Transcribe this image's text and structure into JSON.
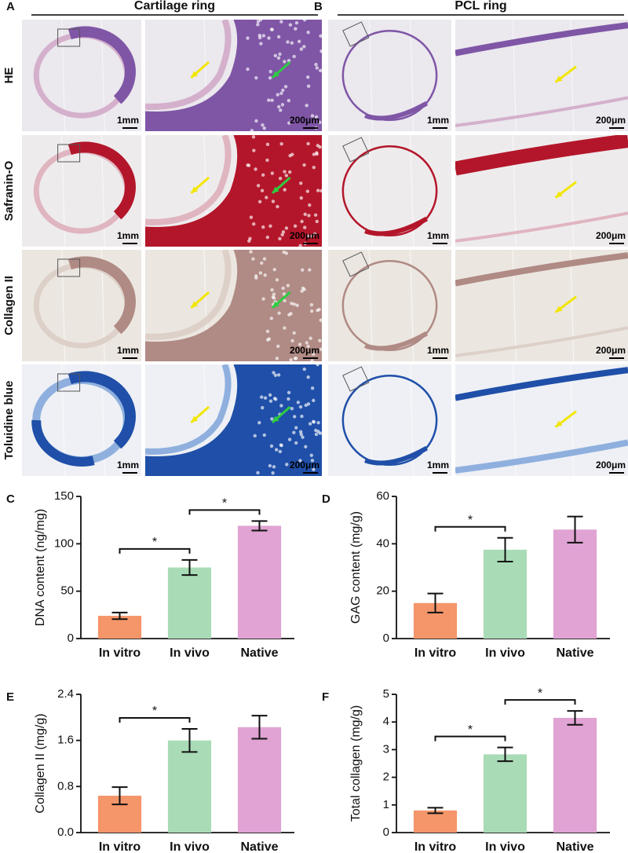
{
  "histology": {
    "panels": [
      {
        "label": "A",
        "title": "Cartilage ring",
        "scale_bars": [
          "1mm",
          "200μm"
        ]
      },
      {
        "label": "B",
        "title": "PCL ring",
        "scale_bars": [
          "1mm",
          "200μm"
        ]
      }
    ],
    "stains": [
      "HE",
      "Safranin-O",
      "Collagen II",
      "Toluidine blue"
    ]
  },
  "chart_data": [
    {
      "type": "bar",
      "panel": "C",
      "ylabel": "DNA content (ng/mg)",
      "categories": [
        "In vitro",
        "In vivo",
        "Native"
      ],
      "values": [
        24,
        75,
        119
      ],
      "errors": [
        3.5,
        8,
        5
      ],
      "colors": [
        "#f4956a",
        "#a9dcb6",
        "#e0a3d3"
      ],
      "ylim": [
        0,
        150
      ],
      "yticks": [
        0,
        50,
        100,
        150
      ],
      "significance": [
        {
          "between": [
            "In vitro",
            "In vivo"
          ],
          "label": "*"
        },
        {
          "between": [
            "In vivo",
            "Native"
          ],
          "label": "*"
        }
      ]
    },
    {
      "type": "bar",
      "panel": "D",
      "ylabel": "GAG content (mg/g)",
      "categories": [
        "In vitro",
        "In vivo",
        "Native"
      ],
      "values": [
        15,
        37.5,
        46
      ],
      "errors": [
        4,
        5,
        5.5
      ],
      "colors": [
        "#f4956a",
        "#a9dcb6",
        "#e0a3d3"
      ],
      "ylim": [
        0,
        60
      ],
      "yticks": [
        0,
        20,
        40,
        60
      ],
      "significance": [
        {
          "between": [
            "In vitro",
            "In vivo"
          ],
          "label": "*"
        }
      ]
    },
    {
      "type": "bar",
      "panel": "E",
      "ylabel": "Collagen II (mg/g)",
      "categories": [
        "In vitro",
        "In vivo",
        "Native"
      ],
      "values": [
        0.64,
        1.6,
        1.83
      ],
      "errors": [
        0.15,
        0.2,
        0.2
      ],
      "colors": [
        "#f4956a",
        "#a9dcb6",
        "#e0a3d3"
      ],
      "ylim": [
        0,
        2.4
      ],
      "yticks": [
        {
          "value": 0,
          "label": "0.0"
        },
        0.8,
        1.6,
        2.4
      ],
      "significance": [
        {
          "between": [
            "In vitro",
            "In vivo"
          ],
          "label": "*"
        }
      ]
    },
    {
      "type": "bar",
      "panel": "F",
      "ylabel": "Total collagen (mg/g)",
      "categories": [
        "In vitro",
        "In vivo",
        "Native"
      ],
      "values": [
        0.8,
        2.83,
        4.15
      ],
      "errors": [
        0.1,
        0.25,
        0.25
      ],
      "colors": [
        "#f4956a",
        "#a9dcb6",
        "#e0a3d3"
      ],
      "ylim": [
        0,
        5
      ],
      "yticks": [
        0,
        1,
        2,
        3,
        4,
        5
      ],
      "significance": [
        {
          "between": [
            "In vitro",
            "In vivo"
          ],
          "label": "*"
        },
        {
          "between": [
            "In vivo",
            "Native"
          ],
          "label": "*"
        }
      ]
    }
  ]
}
